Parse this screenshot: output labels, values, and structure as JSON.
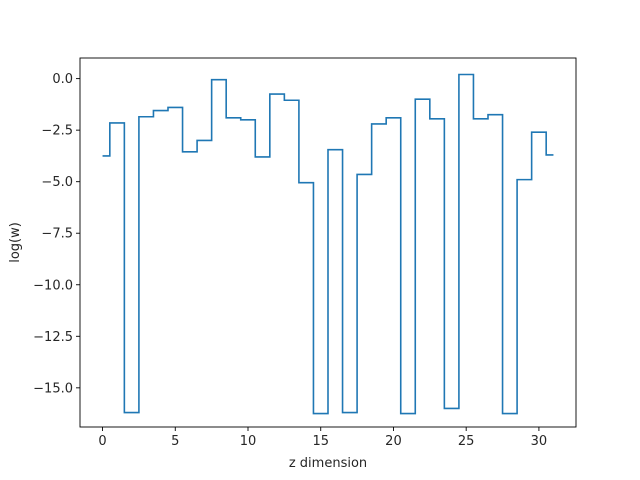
{
  "chart_data": {
    "type": "line",
    "style": "step-mid",
    "title": "",
    "xlabel": "z dimension",
    "ylabel": "log(w)",
    "xlim": [
      -1.55,
      32.55
    ],
    "ylim": [
      -16.9,
      1.0
    ],
    "xticks": [
      0,
      5,
      10,
      15,
      20,
      25,
      30
    ],
    "yticks": [
      0.0,
      -2.5,
      -5.0,
      -7.5,
      -10.0,
      -12.5,
      -15.0
    ],
    "xtick_labels": [
      "0",
      "5",
      "10",
      "15",
      "20",
      "25",
      "30"
    ],
    "ytick_labels": [
      "0.0",
      "−2.5",
      "−5.0",
      "−7.5",
      "−10.0",
      "−12.5",
      "−15.0"
    ],
    "grid": false,
    "line_color": "#1f77b4",
    "series": [
      {
        "x": [
          0,
          1,
          2,
          3,
          4,
          5,
          6,
          7,
          8,
          9,
          10,
          11,
          12,
          13,
          14,
          15,
          16,
          17,
          18,
          19,
          20,
          21,
          22,
          23,
          24,
          25,
          26,
          27,
          28,
          29,
          30,
          31
        ],
        "values": [
          -3.75,
          -2.15,
          -16.2,
          -1.85,
          -1.55,
          -1.4,
          -3.55,
          -3.0,
          -0.05,
          -1.9,
          -2.0,
          -3.8,
          -0.75,
          -1.05,
          -5.05,
          -16.25,
          -3.45,
          -16.2,
          -4.65,
          -2.2,
          -1.9,
          -16.25,
          -1.0,
          -1.95,
          -16.0,
          0.2,
          -1.95,
          -1.75,
          -16.25,
          -4.9,
          -2.6,
          -3.7
        ]
      }
    ]
  }
}
